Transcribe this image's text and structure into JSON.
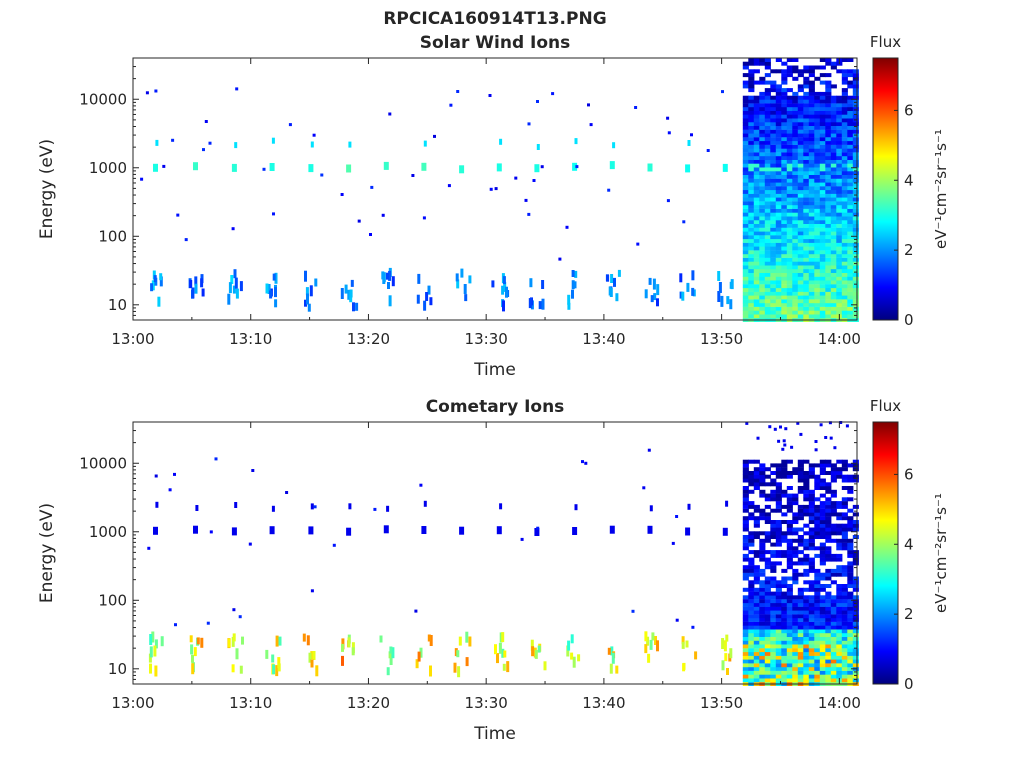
{
  "figure": {
    "suptitle": "RPCICA160914T13.PNG",
    "colorbar_label": "eV⁻¹cm⁻²sr⁻¹s⁻¹",
    "colorbar_title": "Flux",
    "colormap": "jet"
  },
  "chart_data": [
    {
      "type": "heatmap",
      "title": "Solar Wind Ions",
      "xlabel": "Time",
      "ylabel": "Energy (eV)",
      "x_ticks": [
        "13:00",
        "13:10",
        "13:20",
        "13:30",
        "13:40",
        "13:50",
        "14:00"
      ],
      "y_ticks": [
        "10",
        "100",
        "1000",
        "10000"
      ],
      "y_scale": "log",
      "ylim": [
        6,
        40000
      ],
      "xlim_minutes": [
        0,
        61.5
      ],
      "colorbar": {
        "range": [
          0,
          7.5
        ],
        "ticks": [
          "0",
          "2",
          "4",
          "6"
        ],
        "title": "Flux"
      },
      "dense_region": {
        "start_minute": 51.8,
        "end_minute": 61.5,
        "description": "continuous ion flux coverage"
      },
      "sweeps": [
        {
          "minute": 1.8,
          "low_band_level": 2.0,
          "main_band_level": 3.0
        },
        {
          "minute": 5.2,
          "low_band_level": 1.8,
          "main_band_level": 3.2
        },
        {
          "minute": 8.5,
          "low_band_level": 2.0,
          "main_band_level": 3.1
        },
        {
          "minute": 11.7,
          "low_band_level": 1.9,
          "main_band_level": 3.0
        },
        {
          "minute": 15.0,
          "low_band_level": 1.8,
          "main_band_level": 3.0
        },
        {
          "minute": 18.2,
          "low_band_level": 1.9,
          "main_band_level": 3.4
        },
        {
          "minute": 21.4,
          "low_band_level": 1.8,
          "main_band_level": 3.2
        },
        {
          "minute": 24.6,
          "low_band_level": 1.8,
          "main_band_level": 3.3
        },
        {
          "minute": 27.8,
          "low_band_level": 1.9,
          "main_band_level": 3.1
        },
        {
          "minute": 31.0,
          "low_band_level": 1.8,
          "main_band_level": 3.0
        },
        {
          "minute": 34.2,
          "low_band_level": 1.8,
          "main_band_level": 3.0
        },
        {
          "minute": 37.4,
          "low_band_level": 1.9,
          "main_band_level": 2.9
        },
        {
          "minute": 40.6,
          "low_band_level": 1.8,
          "main_band_level": 3.0
        },
        {
          "minute": 43.8,
          "low_band_level": 1.8,
          "main_band_level": 3.1
        },
        {
          "minute": 47.0,
          "low_band_level": 1.8,
          "main_band_level": 2.9
        },
        {
          "minute": 50.2,
          "low_band_level": 1.8,
          "main_band_level": 2.9
        }
      ]
    },
    {
      "type": "heatmap",
      "title": "Cometary Ions",
      "xlabel": "Time",
      "ylabel": "Energy (eV)",
      "x_ticks": [
        "13:00",
        "13:10",
        "13:20",
        "13:30",
        "13:40",
        "13:50",
        "14:00"
      ],
      "y_ticks": [
        "10",
        "100",
        "1000",
        "10000"
      ],
      "y_scale": "log",
      "ylim": [
        6,
        40000
      ],
      "xlim_minutes": [
        0,
        61.5
      ],
      "colorbar": {
        "range": [
          0,
          7.5
        ],
        "ticks": [
          "0",
          "2",
          "4",
          "6"
        ],
        "title": "Flux"
      },
      "dense_region": {
        "start_minute": 51.8,
        "end_minute": 61.5,
        "description": "continuous ion flux coverage up to ~11000 eV"
      },
      "sweeps": [
        {
          "minute": 1.8,
          "low_band_level": 4.0,
          "main_band_level": 0.8
        },
        {
          "minute": 5.2,
          "low_band_level": 4.6,
          "main_band_level": 0.8
        },
        {
          "minute": 8.5,
          "low_band_level": 4.4,
          "main_band_level": 0.8
        },
        {
          "minute": 11.7,
          "low_band_level": 4.2,
          "main_band_level": 0.8
        },
        {
          "minute": 15.0,
          "low_band_level": 4.5,
          "main_band_level": 0.8
        },
        {
          "minute": 18.2,
          "low_band_level": 4.8,
          "main_band_level": 0.8
        },
        {
          "minute": 21.4,
          "low_band_level": 4.0,
          "main_band_level": 0.8
        },
        {
          "minute": 24.6,
          "low_band_level": 4.6,
          "main_band_level": 0.8
        },
        {
          "minute": 27.8,
          "low_band_level": 4.5,
          "main_band_level": 0.8
        },
        {
          "minute": 31.0,
          "low_band_level": 4.4,
          "main_band_level": 0.8
        },
        {
          "minute": 34.2,
          "low_band_level": 4.7,
          "main_band_level": 0.8
        },
        {
          "minute": 37.4,
          "low_band_level": 4.3,
          "main_band_level": 0.8
        },
        {
          "minute": 40.6,
          "low_band_level": 4.4,
          "main_band_level": 0.8
        },
        {
          "minute": 43.8,
          "low_band_level": 4.6,
          "main_band_level": 0.8
        },
        {
          "minute": 47.0,
          "low_band_level": 4.2,
          "main_band_level": 0.8
        },
        {
          "minute": 50.2,
          "low_band_level": 4.3,
          "main_band_level": 0.8
        }
      ]
    }
  ]
}
